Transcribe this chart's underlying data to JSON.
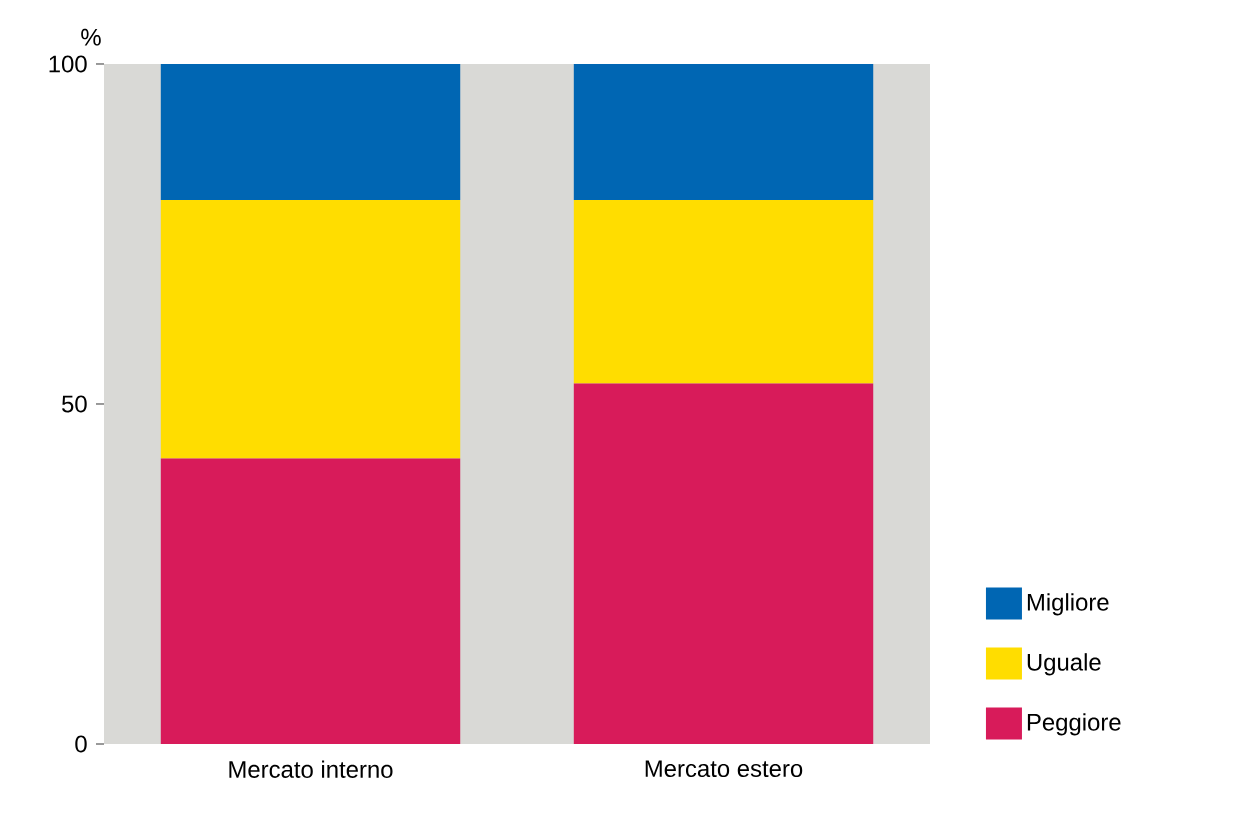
{
  "chart_data": {
    "type": "bar",
    "stacked": true,
    "ylabel": "%",
    "categories": [
      "Mercato interno",
      "Mercato estero"
    ],
    "series": [
      {
        "name": "Peggiore",
        "color": "#d81b5a",
        "values": [
          42,
          53
        ]
      },
      {
        "name": "Uguale",
        "color": "#ffdd00",
        "values": [
          38,
          27
        ]
      },
      {
        "name": "Migliore",
        "color": "#0066b3",
        "values": [
          20,
          20
        ]
      }
    ],
    "ylim": [
      0,
      100
    ],
    "yticks": [
      0,
      50,
      100
    ],
    "legend": "right"
  }
}
